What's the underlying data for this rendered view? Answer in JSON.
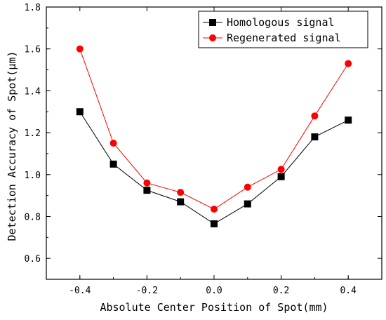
{
  "chart_data": {
    "type": "line",
    "xlabel": "Absolute Center Position of Spot(mm)",
    "ylabel": "Detection Accuracy of Spot(μm)",
    "xlim": [
      -0.5,
      0.5
    ],
    "ylim": [
      0.5,
      1.8
    ],
    "x_ticks": [
      -0.4,
      -0.2,
      0.0,
      0.2,
      0.4
    ],
    "x_tick_labels": [
      "-0.4",
      "-0.2",
      "0.0",
      "0.2",
      "0.4"
    ],
    "y_ticks": [
      0.6,
      0.8,
      1.0,
      1.2,
      1.4,
      1.6,
      1.8
    ],
    "y_tick_labels": [
      "0.6",
      "0.8",
      "1.0",
      "1.2",
      "1.4",
      "1.6",
      "1.8"
    ],
    "grid": false,
    "legend_position": "top-right",
    "x": [
      -0.4,
      -0.3,
      -0.2,
      -0.1,
      0.0,
      0.1,
      0.2,
      0.3,
      0.4
    ],
    "series": [
      {
        "name": "Homologous signal",
        "marker": "square",
        "color": "#000000",
        "values": [
          1.3,
          1.05,
          0.925,
          0.87,
          0.765,
          0.86,
          0.99,
          1.18,
          1.26
        ]
      },
      {
        "name": "Regenerated signal",
        "marker": "circle",
        "color": "#ff0000",
        "values": [
          1.6,
          1.15,
          0.96,
          0.915,
          0.835,
          0.94,
          1.025,
          1.28,
          1.53
        ]
      }
    ]
  }
}
